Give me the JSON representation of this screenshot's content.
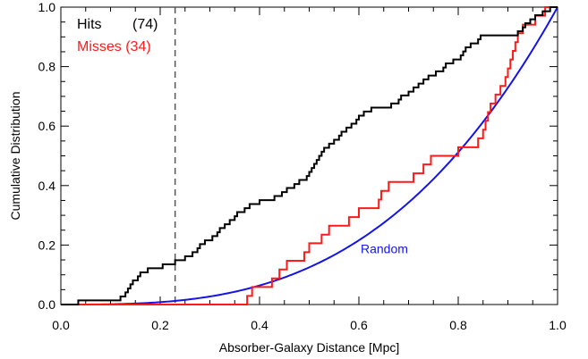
{
  "chart_data": {
    "type": "line",
    "title": "",
    "xlabel": "Absorber-Galaxy Distance [Mpc]",
    "ylabel": "Cumulative Distribution",
    "xlim": [
      0.0,
      1.0
    ],
    "ylim": [
      0.0,
      1.0
    ],
    "x_ticks": [
      0.0,
      0.2,
      0.4,
      0.6,
      0.8,
      1.0
    ],
    "x_tick_labels": [
      "0.0",
      "0.2",
      "0.4",
      "0.6",
      "0.8",
      "1.0"
    ],
    "y_ticks": [
      0.0,
      0.2,
      0.4,
      0.6,
      0.8,
      1.0
    ],
    "y_tick_labels": [
      "0.0",
      "0.2",
      "0.4",
      "0.6",
      "0.8",
      "1.0"
    ],
    "grid": false,
    "legend_position": "top-left",
    "reference_line": {
      "x": 0.23,
      "style": "dashed",
      "color": "#555555"
    },
    "series": [
      {
        "name": "Hits",
        "legend_label": "Hits",
        "legend_count": "(74)",
        "color": "#000000",
        "style": "step",
        "points": [
          [
            0.0,
            0.0
          ],
          [
            0.035,
            0.0
          ],
          [
            0.035,
            0.014
          ],
          [
            0.12,
            0.014
          ],
          [
            0.12,
            0.027
          ],
          [
            0.13,
            0.041
          ],
          [
            0.135,
            0.054
          ],
          [
            0.14,
            0.068
          ],
          [
            0.145,
            0.081
          ],
          [
            0.155,
            0.095
          ],
          [
            0.16,
            0.108
          ],
          [
            0.175,
            0.122
          ],
          [
            0.205,
            0.135
          ],
          [
            0.23,
            0.149
          ],
          [
            0.25,
            0.162
          ],
          [
            0.265,
            0.176
          ],
          [
            0.275,
            0.189
          ],
          [
            0.28,
            0.203
          ],
          [
            0.29,
            0.216
          ],
          [
            0.305,
            0.23
          ],
          [
            0.315,
            0.243
          ],
          [
            0.32,
            0.257
          ],
          [
            0.33,
            0.27
          ],
          [
            0.34,
            0.284
          ],
          [
            0.35,
            0.297
          ],
          [
            0.355,
            0.311
          ],
          [
            0.37,
            0.324
          ],
          [
            0.38,
            0.338
          ],
          [
            0.4,
            0.351
          ],
          [
            0.43,
            0.365
          ],
          [
            0.445,
            0.378
          ],
          [
            0.455,
            0.392
          ],
          [
            0.47,
            0.405
          ],
          [
            0.48,
            0.419
          ],
          [
            0.495,
            0.432
          ],
          [
            0.5,
            0.446
          ],
          [
            0.505,
            0.459
          ],
          [
            0.51,
            0.473
          ],
          [
            0.515,
            0.486
          ],
          [
            0.52,
            0.5
          ],
          [
            0.525,
            0.514
          ],
          [
            0.53,
            0.527
          ],
          [
            0.54,
            0.541
          ],
          [
            0.55,
            0.554
          ],
          [
            0.56,
            0.568
          ],
          [
            0.565,
            0.581
          ],
          [
            0.575,
            0.595
          ],
          [
            0.585,
            0.608
          ],
          [
            0.595,
            0.622
          ],
          [
            0.6,
            0.635
          ],
          [
            0.61,
            0.649
          ],
          [
            0.625,
            0.662
          ],
          [
            0.665,
            0.676
          ],
          [
            0.68,
            0.689
          ],
          [
            0.685,
            0.703
          ],
          [
            0.7,
            0.716
          ],
          [
            0.71,
            0.73
          ],
          [
            0.72,
            0.743
          ],
          [
            0.73,
            0.757
          ],
          [
            0.74,
            0.77
          ],
          [
            0.755,
            0.784
          ],
          [
            0.77,
            0.797
          ],
          [
            0.775,
            0.811
          ],
          [
            0.79,
            0.824
          ],
          [
            0.805,
            0.838
          ],
          [
            0.81,
            0.851
          ],
          [
            0.815,
            0.865
          ],
          [
            0.825,
            0.878
          ],
          [
            0.84,
            0.892
          ],
          [
            0.845,
            0.905
          ],
          [
            0.92,
            0.919
          ],
          [
            0.93,
            0.932
          ],
          [
            0.935,
            0.946
          ],
          [
            0.945,
            0.959
          ],
          [
            0.955,
            0.973
          ],
          [
            0.97,
            0.986
          ],
          [
            0.985,
            1.0
          ]
        ]
      },
      {
        "name": "Misses",
        "legend_label": "Misses (34)",
        "color": "#ff1a1a",
        "style": "step",
        "points": [
          [
            0.0,
            0.0
          ],
          [
            0.375,
            0.0
          ],
          [
            0.375,
            0.029
          ],
          [
            0.385,
            0.059
          ],
          [
            0.425,
            0.088
          ],
          [
            0.44,
            0.118
          ],
          [
            0.455,
            0.147
          ],
          [
            0.49,
            0.176
          ],
          [
            0.5,
            0.206
          ],
          [
            0.525,
            0.235
          ],
          [
            0.54,
            0.265
          ],
          [
            0.58,
            0.294
          ],
          [
            0.6,
            0.324
          ],
          [
            0.64,
            0.353
          ],
          [
            0.645,
            0.382
          ],
          [
            0.66,
            0.412
          ],
          [
            0.71,
            0.441
          ],
          [
            0.73,
            0.471
          ],
          [
            0.745,
            0.5
          ],
          [
            0.8,
            0.529
          ],
          [
            0.84,
            0.559
          ],
          [
            0.85,
            0.588
          ],
          [
            0.855,
            0.618
          ],
          [
            0.86,
            0.647
          ],
          [
            0.865,
            0.676
          ],
          [
            0.875,
            0.706
          ],
          [
            0.885,
            0.735
          ],
          [
            0.895,
            0.765
          ],
          [
            0.9,
            0.794
          ],
          [
            0.905,
            0.824
          ],
          [
            0.91,
            0.853
          ],
          [
            0.915,
            0.882
          ],
          [
            0.92,
            0.912
          ],
          [
            0.93,
            0.941
          ],
          [
            0.955,
            0.971
          ],
          [
            0.975,
            1.0
          ]
        ]
      },
      {
        "name": "Random",
        "label": "Random",
        "color": "#1414e6",
        "style": "curve",
        "function": "y = x^3",
        "label_anchor": [
          0.6,
          0.2
        ]
      }
    ]
  }
}
